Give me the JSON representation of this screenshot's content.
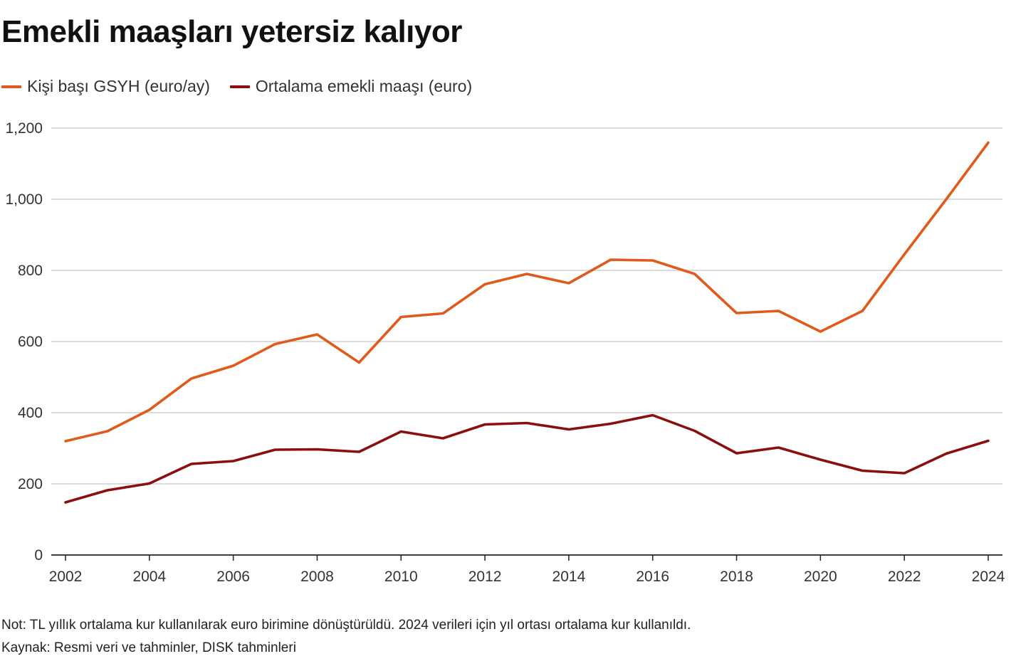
{
  "title": "Emekli maaşları yetersiz kalıyor",
  "legend": [
    {
      "label": "Kişi başı GSYH (euro/ay)",
      "color": "#e05a1c"
    },
    {
      "label": "Ortalama emekli maaşı (euro)",
      "color": "#8b0f0f"
    }
  ],
  "chart_data": {
    "type": "line",
    "x": [
      2002,
      2003,
      2004,
      2005,
      2006,
      2007,
      2008,
      2009,
      2010,
      2011,
      2012,
      2013,
      2014,
      2015,
      2016,
      2017,
      2018,
      2019,
      2020,
      2021,
      2022,
      2023,
      2024
    ],
    "series": [
      {
        "name": "Kişi başı GSYH (euro/ay)",
        "color": "#e05a1c",
        "values": [
          320,
          348,
          408,
          496,
          532,
          593,
          620,
          541,
          669,
          679,
          761,
          790,
          764,
          830,
          828,
          790,
          680,
          686,
          628,
          686,
          845,
          1000,
          1159
        ]
      },
      {
        "name": "Ortalama emekli maaşı (euro)",
        "color": "#8b0f0f",
        "values": [
          148,
          182,
          201,
          256,
          264,
          296,
          297,
          290,
          347,
          328,
          367,
          371,
          353,
          369,
          393,
          349,
          286,
          302,
          268,
          237,
          230,
          285,
          321
        ]
      }
    ],
    "ylim": [
      0,
      1200
    ],
    "yticks": [
      0,
      200,
      400,
      600,
      800,
      1000,
      1200
    ],
    "ytick_labels": [
      "0",
      "200",
      "400",
      "600",
      "800",
      "1,000",
      "1,200"
    ],
    "xticks": [
      2002,
      2004,
      2006,
      2008,
      2010,
      2012,
      2014,
      2016,
      2018,
      2020,
      2022,
      2024
    ],
    "xtick_labels": [
      "2002",
      "2004",
      "2006",
      "2008",
      "2010",
      "2012",
      "2014",
      "2016",
      "2018",
      "2020",
      "2022",
      "2024"
    ],
    "grid": true
  },
  "footer": {
    "note": "Not: TL yıllık ortalama kur kullanılarak euro birimine dönüştürüldü. 2024 verileri için yıl ortası ortalama kur kullanıldı.",
    "source": "Kaynak: Resmi veri ve tahminler, DISK tahminleri"
  }
}
